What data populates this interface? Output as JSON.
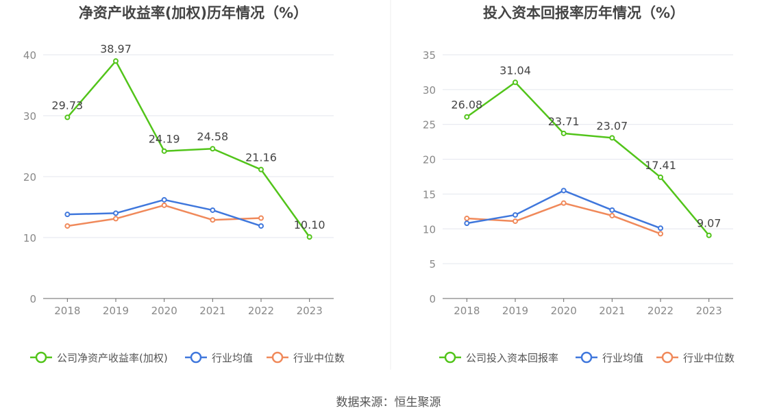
{
  "source": "数据来源：恒生聚源",
  "chart_data": [
    {
      "type": "line",
      "title": "净资产收益率(加权)历年情况（%）",
      "categories": [
        "2018",
        "2019",
        "2020",
        "2021",
        "2022",
        "2023"
      ],
      "ylim": [
        0,
        40
      ],
      "yticks": [
        0,
        10,
        20,
        30,
        40
      ],
      "grid": true,
      "legend_position": "bottom",
      "series": [
        {
          "name": "公司净资产收益率(加权)",
          "color": "#52c41a",
          "labels": true,
          "values": [
            29.73,
            38.97,
            24.19,
            24.58,
            21.16,
            10.1
          ],
          "value_labels": [
            "29.73",
            "38.97",
            "24.19",
            "24.58",
            "21.16",
            "10.10"
          ]
        },
        {
          "name": "行业均值",
          "color": "#3f77dc",
          "labels": false,
          "values": [
            13.8,
            14.0,
            16.2,
            14.5,
            11.9,
            null
          ]
        },
        {
          "name": "行业中位数",
          "color": "#f0895a",
          "labels": false,
          "values": [
            11.9,
            13.1,
            15.3,
            12.9,
            13.2,
            null
          ]
        }
      ]
    },
    {
      "type": "line",
      "title": "投入资本回报率历年情况（%）",
      "categories": [
        "2018",
        "2019",
        "2020",
        "2021",
        "2022",
        "2023"
      ],
      "ylim": [
        0,
        35
      ],
      "yticks": [
        0,
        5,
        10,
        15,
        20,
        25,
        30,
        35
      ],
      "grid": true,
      "legend_position": "bottom",
      "series": [
        {
          "name": "公司投入资本回报率",
          "color": "#52c41a",
          "labels": true,
          "values": [
            26.08,
            31.04,
            23.71,
            23.07,
            17.41,
            9.07
          ],
          "value_labels": [
            "26.08",
            "31.04",
            "23.71",
            "23.07",
            "17.41",
            "9.07"
          ]
        },
        {
          "name": "行业均值",
          "color": "#3f77dc",
          "labels": false,
          "values": [
            10.8,
            12.0,
            15.5,
            12.7,
            10.1,
            null
          ]
        },
        {
          "name": "行业中位数",
          "color": "#f0895a",
          "labels": false,
          "values": [
            11.5,
            11.1,
            13.7,
            11.9,
            9.3,
            null
          ]
        }
      ]
    }
  ]
}
